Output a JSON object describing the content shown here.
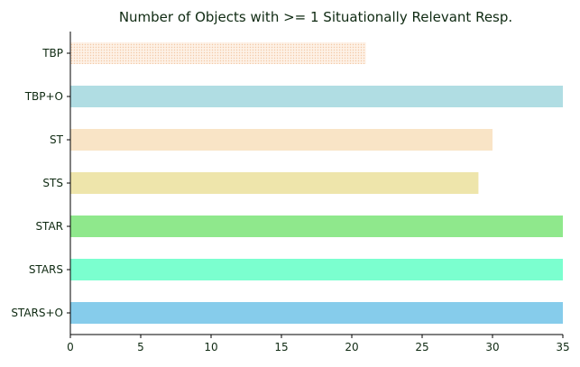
{
  "chart_data": {
    "type": "bar",
    "orientation": "horizontal",
    "title": "Number of Objects with >= 1 Situationally Relevant Resp.",
    "xlabel": "",
    "ylabel": "",
    "xlim": [
      0,
      35
    ],
    "xticks": [
      0,
      5,
      10,
      15,
      20,
      25,
      30,
      35
    ],
    "categories": [
      "TBP",
      "TBP+O",
      "ST",
      "STS",
      "STAR",
      "STARS",
      "STARS+O"
    ],
    "values": [
      21,
      35,
      30,
      29,
      35,
      35,
      35
    ],
    "bar_colors": [
      "#fbe5d3",
      "#b0dde3",
      "#f9e4c6",
      "#eee5ab",
      "#8fe88c",
      "#7bffcf",
      "#86cceb"
    ],
    "bar_patterns": [
      "dotted",
      "solid",
      "solid",
      "solid",
      "solid",
      "solid",
      "solid"
    ],
    "grid": false,
    "legend": "none"
  }
}
